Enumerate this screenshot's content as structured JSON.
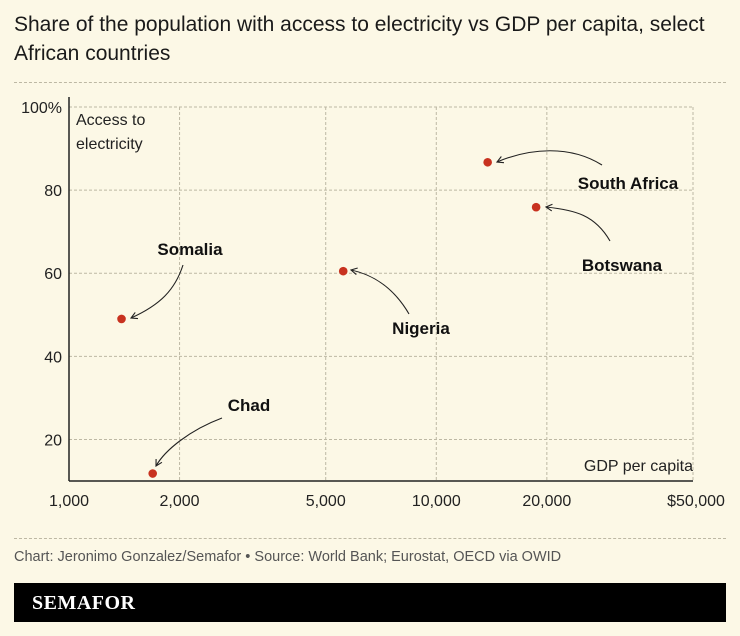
{
  "title": "Share of the population with access to electricity vs GDP per capita, select African countries",
  "source": "Chart: Jeronimo Gonzalez/Semafor • Source: World Bank; Eurostat, OECD via OWID",
  "brand": "SEMAFOR",
  "chart_data": {
    "type": "scatter",
    "title": "Share of the population with access to electricity vs GDP per capita, select African countries",
    "xlabel": "GDP per capita",
    "ylabel": "Access to electricity",
    "x_scale": "log",
    "xlim": [
      1000,
      50000
    ],
    "ylim": [
      10,
      100
    ],
    "x_ticks": [
      1000,
      2000,
      5000,
      10000,
      20000,
      50000
    ],
    "x_tick_labels": [
      "1,000",
      "2,000",
      "5,000",
      "10,000",
      "20,000",
      "$50,000"
    ],
    "y_ticks": [
      20,
      40,
      60,
      80,
      100
    ],
    "y_tick_labels": [
      "20",
      "40",
      "60",
      "80",
      "100%"
    ],
    "grid": true,
    "point_color": "#c8321f",
    "points": [
      {
        "label": "Chad",
        "x": 1690,
        "y": 11.8
      },
      {
        "label": "Somalia",
        "x": 1390,
        "y": 49
      },
      {
        "label": "Nigeria",
        "x": 5580,
        "y": 60.5
      },
      {
        "label": "South Africa",
        "x": 13800,
        "y": 86.7
      },
      {
        "label": "Botswana",
        "x": 18700,
        "y": 75.9
      }
    ]
  }
}
